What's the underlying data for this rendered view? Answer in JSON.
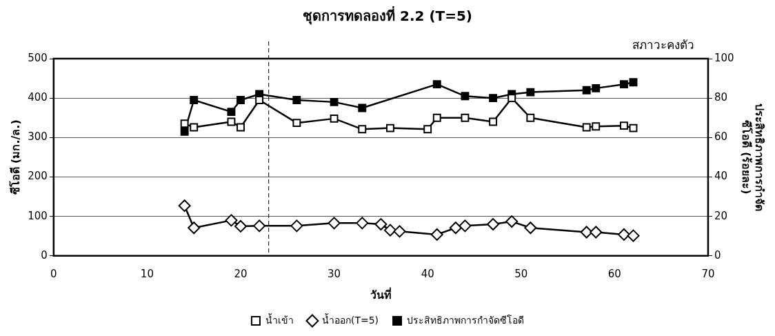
{
  "chart_data": {
    "type": "line",
    "title": "ชุดการทดลองที่ 2.2 (T=5)",
    "annotations": [
      "สภาวะคงตัว"
    ],
    "xlabel": "วันที่",
    "ylabel": "ซีโอดี (มก./ล.)",
    "y2label": "ประสิทธิภาพการกำจัด ซีโอดี (ร้อยละ)",
    "xlim": [
      0,
      70
    ],
    "xticks": [
      0,
      10,
      20,
      30,
      40,
      50,
      60,
      70
    ],
    "ylim": [
      0,
      500
    ],
    "yticks": [
      0,
      100,
      200,
      300,
      400,
      500
    ],
    "y2lim": [
      0,
      100
    ],
    "y2ticks": [
      0,
      20,
      40,
      60,
      80,
      100
    ],
    "grid": "y",
    "legend": "bottom",
    "line_style": "solid",
    "ref_lines": [
      {
        "axis": "x",
        "value": 23,
        "line_style": "dashed",
        "color": "#000000"
      }
    ],
    "series": [
      {
        "name": "น้ำเข้า",
        "color": "#000000",
        "marker": "square",
        "x": [
          14,
          15,
          19,
          20,
          22,
          26,
          30,
          33,
          36,
          40,
          41,
          44,
          47,
          49,
          51,
          57,
          58,
          61,
          62
        ],
        "values": [
          335,
          326,
          340,
          326,
          395,
          337,
          348,
          321,
          324,
          321,
          350,
          350,
          340,
          400,
          350,
          326,
          328,
          330,
          324
        ]
      },
      {
        "name": "น้ำออก(T=5)",
        "color": "#000000",
        "marker": "diamond",
        "x": [
          14,
          15,
          19,
          20,
          22,
          26,
          30,
          33,
          35,
          36,
          37,
          41,
          43,
          44,
          47,
          49,
          51,
          57,
          58,
          61,
          62
        ],
        "values": [
          127,
          71,
          90,
          75,
          76,
          76,
          83,
          83,
          80,
          65,
          62,
          54,
          71,
          76,
          80,
          87,
          71,
          60,
          60,
          54,
          51
        ]
      },
      {
        "name": "ประสิทธิภาพการกำจัดซีโอดี",
        "color": "#000000",
        "marker": "square",
        "axis": "y2",
        "x": [
          14,
          15,
          19,
          20,
          22,
          26,
          30,
          33,
          41,
          44,
          47,
          49,
          51,
          57,
          58,
          61,
          62
        ],
        "values": [
          63,
          79,
          73,
          79,
          82,
          79,
          78,
          75,
          87,
          81,
          80,
          82,
          83,
          84,
          85,
          87,
          88
        ]
      }
    ]
  }
}
